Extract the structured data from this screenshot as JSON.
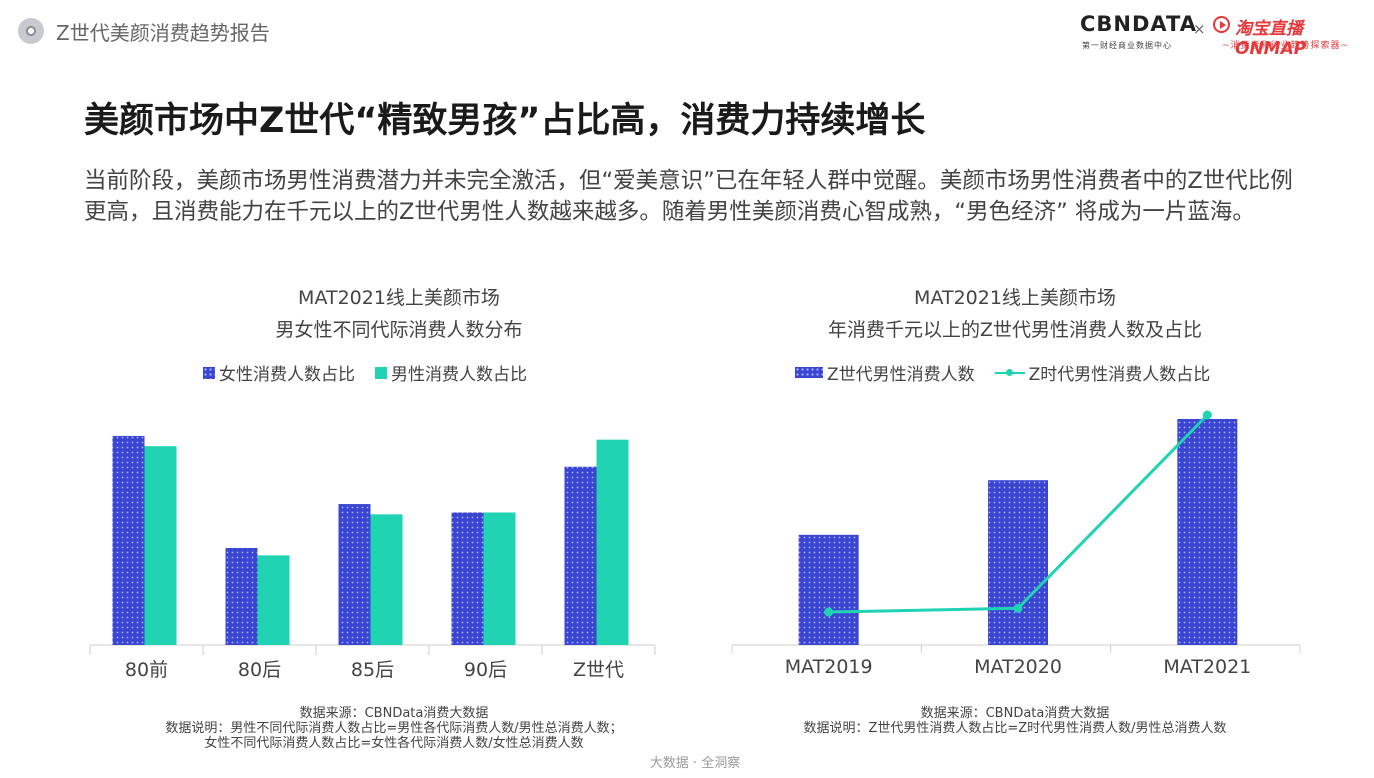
{
  "header": {
    "report_title": "Z世代美颜消费趋势报告",
    "cbn_logo": "CBNDATA",
    "cbn_tagline": "第一财经商业数据中心",
    "times": "×",
    "taobao_logo": "淘宝直播ONMAP",
    "taobao_tagline": "~消费者和行业趋势探索器~"
  },
  "headline": "美颜市场中Z世代“精致男孩”占比高，消费力持续增长",
  "intro": "当前阶段，美颜市场男性消费潜力并未完全激活，但“爱美意识”已在年轻人群中觉醒。美颜市场男性消费者中的Z世代比例更高，且消费能力在千元以上的Z世代男性人数越来越多。随着男性美颜消费心智成熟，“男色经济” 将成为一片蓝海。",
  "colors": {
    "blue": "#3a46d2",
    "teal": "#1fd3b3"
  },
  "chart_data": [
    {
      "type": "bar",
      "title_line1": "MAT2021线上美颜市场",
      "title_line2": "男女性不同代际消费人数分布",
      "categories": [
        "80前",
        "80后",
        "85后",
        "90后",
        "Z世代"
      ],
      "series": [
        {
          "name": "女性消费人数占比",
          "values": [
            22.4,
            10.4,
            15.1,
            14.2,
            19.1
          ]
        },
        {
          "name": "男性消费人数占比",
          "values": [
            21.3,
            9.6,
            14.0,
            14.2,
            22.0
          ]
        }
      ],
      "ylim": [
        0,
        24
      ],
      "grid": false,
      "legend": "top",
      "source": "数据来源：CBNData消费大数据",
      "note_line1": "数据说明：男性不同代际消费人数占比=男性各代际消费人数/男性总消费人数；",
      "note_line2": "女性不同代际消费人数占比=女性各代际消费人数/女性总消费人数"
    },
    {
      "type": "bar+line",
      "title_line1": "MAT2021线上美颜市场",
      "title_line2": "年消费千元以上的Z世代男性消费人数及占比",
      "categories": [
        "MAT2019",
        "MAT2020",
        "MAT2021"
      ],
      "series": [
        {
          "name": "Z世代男性消费人数",
          "kind": "bar",
          "values": [
            11.7,
            17.5,
            24.0
          ]
        },
        {
          "name": "Z时代男性消费人数占比",
          "kind": "line",
          "values": [
            1.8,
            2.2,
            24.0
          ]
        }
      ],
      "ylim": [
        0,
        24
      ],
      "grid": false,
      "legend": "top",
      "source": "数据来源：CBNData消费大数据",
      "note_line1": "数据说明：Z世代男性消费人数占比=Z时代男性消费人数/男性总消费人数"
    }
  ],
  "footer": "大数据 · 全洞察"
}
